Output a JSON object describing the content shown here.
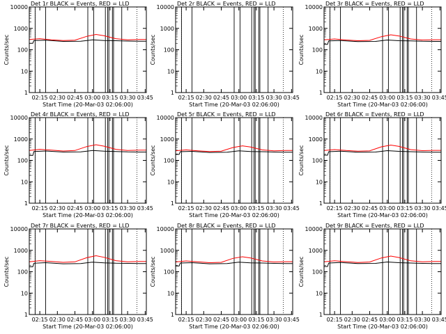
{
  "figure": {
    "xlabel": "Start Time (20-Mar-03 02:06:00)",
    "ylabel": "Counts/sec",
    "colors": {
      "events": "#000000",
      "lld": "#ff0000"
    }
  },
  "chart_data": [
    {
      "type": "line",
      "title": "Det 1r BLACK = Events, RED = LLD",
      "xlabel": "Start Time (20-Mar-03 02:06:00)",
      "ylabel": "Counts/sec",
      "yscale": "log",
      "ylim": [
        1,
        10000
      ],
      "xlim": [
        "02:06",
        "03:46"
      ],
      "xticks": [
        "02:15",
        "02:30",
        "02:45",
        "03:00",
        "03:15",
        "03:30",
        "03:45"
      ],
      "yticks": [
        "1",
        "10",
        "100",
        "1000",
        "10000"
      ],
      "series": [
        {
          "name": "Events",
          "color": "#000000",
          "x": [
            "02:06",
            "02:09",
            "02:10",
            "02:20",
            "02:35",
            "02:50",
            "03:00",
            "03:10",
            "03:20",
            "03:30",
            "03:40",
            "03:46"
          ],
          "y": [
            200,
            200,
            270,
            280,
            245,
            250,
            290,
            270,
            265,
            255,
            250,
            250
          ]
        },
        {
          "name": "LLD",
          "color": "#ff0000",
          "x": [
            "02:06",
            "02:15",
            "02:25",
            "02:35",
            "02:45",
            "02:55",
            "03:03",
            "03:10",
            "03:20",
            "03:30",
            "03:40",
            "03:46"
          ],
          "y": [
            300,
            330,
            290,
            270,
            280,
            420,
            520,
            450,
            330,
            290,
            300,
            300
          ]
        }
      ]
    },
    {
      "type": "line",
      "title": "Det 2r BLACK = Events, RED = LLD",
      "xlabel": "Start Time (20-Mar-03 02:06:00)",
      "ylabel": "Counts/sec",
      "yscale": "log",
      "ylim": [
        1,
        10000
      ],
      "xlim": [
        "02:06",
        "03:46"
      ],
      "xticks": [
        "02:15",
        "02:30",
        "02:45",
        "03:00",
        "03:15",
        "03:30",
        "03:45"
      ],
      "yticks": [
        "1",
        "10",
        "100",
        "1000",
        "10000"
      ],
      "series": []
    },
    {
      "type": "line",
      "title": "Det 3r BLACK = Events, RED = LLD",
      "xlabel": "Start Time (20-Mar-03 02:06:00)",
      "ylabel": "Counts/sec",
      "yscale": "log",
      "ylim": [
        1,
        10000
      ],
      "xlim": [
        "02:06",
        "03:46"
      ],
      "xticks": [
        "02:15",
        "02:30",
        "02:45",
        "03:00",
        "03:15",
        "03:30",
        "03:45"
      ],
      "yticks": [
        "1",
        "10",
        "100",
        "1000",
        "10000"
      ],
      "series": [
        {
          "name": "Events",
          "color": "#000000",
          "x": [
            "02:06",
            "02:09",
            "02:10",
            "02:20",
            "02:35",
            "02:50",
            "03:00",
            "03:10",
            "03:20",
            "03:30",
            "03:40",
            "03:46"
          ],
          "y": [
            180,
            180,
            260,
            270,
            240,
            245,
            285,
            265,
            260,
            250,
            245,
            245
          ]
        },
        {
          "name": "LLD",
          "color": "#ff0000",
          "x": [
            "02:06",
            "02:15",
            "02:25",
            "02:35",
            "02:45",
            "02:55",
            "03:03",
            "03:10",
            "03:20",
            "03:30",
            "03:40",
            "03:46"
          ],
          "y": [
            290,
            320,
            285,
            265,
            275,
            410,
            500,
            440,
            320,
            285,
            295,
            295
          ]
        }
      ]
    },
    {
      "type": "line",
      "title": "Det 4r BLACK = Events, RED = LLD",
      "xlabel": "Start Time (20-Mar-03 02:06:00)",
      "ylabel": "Counts/sec",
      "yscale": "log",
      "ylim": [
        1,
        10000
      ],
      "xlim": [
        "02:06",
        "03:46"
      ],
      "xticks": [
        "02:15",
        "02:30",
        "02:45",
        "03:00",
        "03:15",
        "03:30",
        "03:45"
      ],
      "yticks": [
        "1",
        "10",
        "100",
        "1000",
        "10000"
      ],
      "series": [
        {
          "name": "Events",
          "color": "#000000",
          "x": [
            "02:06",
            "02:09",
            "02:10",
            "02:20",
            "02:35",
            "02:50",
            "03:00",
            "03:10",
            "03:20",
            "03:30",
            "03:40",
            "03:46"
          ],
          "y": [
            170,
            170,
            260,
            275,
            245,
            250,
            290,
            270,
            260,
            250,
            245,
            245
          ]
        },
        {
          "name": "LLD",
          "color": "#ff0000",
          "x": [
            "02:06",
            "02:15",
            "02:25",
            "02:35",
            "02:45",
            "02:55",
            "03:03",
            "03:10",
            "03:20",
            "03:30",
            "03:40",
            "03:46"
          ],
          "y": [
            290,
            330,
            300,
            275,
            290,
            440,
            540,
            460,
            330,
            290,
            300,
            300
          ]
        }
      ]
    },
    {
      "type": "line",
      "title": "Det 5r BLACK = Events, RED = LLD",
      "xlabel": "Start Time (20-Mar-03 02:06:00)",
      "ylabel": "Counts/sec",
      "yscale": "log",
      "ylim": [
        1,
        10000
      ],
      "xlim": [
        "02:06",
        "03:46"
      ],
      "xticks": [
        "02:15",
        "02:30",
        "02:45",
        "03:00",
        "03:15",
        "03:30",
        "03:45"
      ],
      "yticks": [
        "1",
        "10",
        "100",
        "1000",
        "10000"
      ],
      "series": [
        {
          "name": "Events",
          "color": "#000000",
          "x": [
            "02:06",
            "02:09",
            "02:10",
            "02:20",
            "02:35",
            "02:50",
            "03:00",
            "03:10",
            "03:20",
            "03:30",
            "03:40",
            "03:46"
          ],
          "y": [
            190,
            190,
            255,
            265,
            235,
            240,
            280,
            260,
            255,
            245,
            240,
            240
          ]
        },
        {
          "name": "LLD",
          "color": "#ff0000",
          "x": [
            "02:06",
            "02:15",
            "02:25",
            "02:35",
            "02:45",
            "02:55",
            "03:03",
            "03:10",
            "03:20",
            "03:30",
            "03:40",
            "03:46"
          ],
          "y": [
            280,
            310,
            280,
            260,
            270,
            400,
            480,
            420,
            310,
            280,
            290,
            290
          ]
        }
      ]
    },
    {
      "type": "line",
      "title": "Det 6r BLACK = Events, RED = LLD",
      "xlabel": "Start Time (20-Mar-03 02:06:00)",
      "ylabel": "Counts/sec",
      "yscale": "log",
      "ylim": [
        1,
        10000
      ],
      "xlim": [
        "02:06",
        "03:46"
      ],
      "xticks": [
        "02:15",
        "02:30",
        "02:45",
        "03:00",
        "03:15",
        "03:30",
        "03:45"
      ],
      "yticks": [
        "1",
        "10",
        "100",
        "1000",
        "10000"
      ],
      "series": [
        {
          "name": "Events",
          "color": "#000000",
          "x": [
            "02:06",
            "02:09",
            "02:10",
            "02:20",
            "02:35",
            "02:50",
            "03:00",
            "03:10",
            "03:20",
            "03:30",
            "03:40",
            "03:46"
          ],
          "y": [
            175,
            175,
            255,
            270,
            240,
            245,
            285,
            265,
            255,
            245,
            240,
            240
          ]
        },
        {
          "name": "LLD",
          "color": "#ff0000",
          "x": [
            "02:06",
            "02:15",
            "02:25",
            "02:35",
            "02:45",
            "02:55",
            "03:03",
            "03:10",
            "03:20",
            "03:30",
            "03:40",
            "03:46"
          ],
          "y": [
            290,
            320,
            290,
            270,
            280,
            430,
            520,
            450,
            320,
            285,
            295,
            295
          ]
        }
      ]
    },
    {
      "type": "line",
      "title": "Det 7r BLACK = Events, RED = LLD",
      "xlabel": "Start Time (20-Mar-03 02:06:00)",
      "ylabel": "Counts/sec",
      "yscale": "log",
      "ylim": [
        1,
        10000
      ],
      "xlim": [
        "02:06",
        "03:46"
      ],
      "xticks": [
        "02:15",
        "02:30",
        "02:45",
        "03:00",
        "03:15",
        "03:30",
        "03:45"
      ],
      "yticks": [
        "1",
        "10",
        "100",
        "1000",
        "10000"
      ],
      "series": [
        {
          "name": "Events",
          "color": "#000000",
          "x": [
            "02:06",
            "02:09",
            "02:10",
            "02:20",
            "02:35",
            "02:50",
            "03:00",
            "03:10",
            "03:20",
            "03:30",
            "03:40",
            "03:46"
          ],
          "y": [
            170,
            170,
            250,
            265,
            235,
            240,
            280,
            260,
            250,
            245,
            240,
            240
          ]
        },
        {
          "name": "LLD",
          "color": "#ff0000",
          "x": [
            "02:06",
            "02:15",
            "02:25",
            "02:35",
            "02:45",
            "02:55",
            "03:03",
            "03:10",
            "03:20",
            "03:30",
            "03:40",
            "03:46"
          ],
          "y": [
            290,
            330,
            300,
            275,
            290,
            450,
            560,
            470,
            330,
            290,
            300,
            300
          ]
        }
      ]
    },
    {
      "type": "line",
      "title": "Det 8r BLACK = Events, RED = LLD",
      "xlabel": "Start Time (20-Mar-03 02:06:00)",
      "ylabel": "Counts/sec",
      "yscale": "log",
      "ylim": [
        1,
        10000
      ],
      "xlim": [
        "02:06",
        "03:46"
      ],
      "xticks": [
        "02:15",
        "02:30",
        "02:45",
        "03:00",
        "03:15",
        "03:30",
        "03:45"
      ],
      "yticks": [
        "1",
        "10",
        "100",
        "1000",
        "10000"
      ],
      "series": [
        {
          "name": "Events",
          "color": "#000000",
          "x": [
            "02:06",
            "02:09",
            "02:10",
            "02:20",
            "02:35",
            "02:50",
            "03:00",
            "03:10",
            "03:20",
            "03:30",
            "03:40",
            "03:46"
          ],
          "y": [
            185,
            185,
            255,
            265,
            235,
            240,
            280,
            260,
            255,
            245,
            240,
            240
          ]
        },
        {
          "name": "LLD",
          "color": "#ff0000",
          "x": [
            "02:06",
            "02:15",
            "02:25",
            "02:35",
            "02:45",
            "02:55",
            "03:03",
            "03:10",
            "03:20",
            "03:30",
            "03:40",
            "03:46"
          ],
          "y": [
            285,
            320,
            290,
            265,
            275,
            420,
            500,
            440,
            320,
            285,
            295,
            295
          ]
        }
      ]
    },
    {
      "type": "line",
      "title": "Det 9r BLACK = Events, RED = LLD",
      "xlabel": "Start Time (20-Mar-03 02:06:00)",
      "ylabel": "Counts/sec",
      "yscale": "log",
      "ylim": [
        1,
        10000
      ],
      "xlim": [
        "02:06",
        "03:46"
      ],
      "xticks": [
        "02:15",
        "02:30",
        "02:45",
        "03:00",
        "03:15",
        "03:30",
        "03:45"
      ],
      "yticks": [
        "1",
        "10",
        "100",
        "1000",
        "10000"
      ],
      "series": [
        {
          "name": "Events",
          "color": "#000000",
          "x": [
            "02:06",
            "02:09",
            "02:10",
            "02:20",
            "02:35",
            "02:50",
            "03:00",
            "03:10",
            "03:20",
            "03:30",
            "03:40",
            "03:46"
          ],
          "y": [
            175,
            175,
            255,
            270,
            240,
            245,
            285,
            265,
            255,
            245,
            240,
            240
          ]
        },
        {
          "name": "LLD",
          "color": "#ff0000",
          "x": [
            "02:06",
            "02:15",
            "02:25",
            "02:35",
            "02:45",
            "02:55",
            "03:03",
            "03:10",
            "03:20",
            "03:30",
            "03:40",
            "03:46"
          ],
          "y": [
            290,
            325,
            295,
            270,
            285,
            440,
            540,
            460,
            325,
            290,
            300,
            300
          ]
        }
      ]
    }
  ]
}
